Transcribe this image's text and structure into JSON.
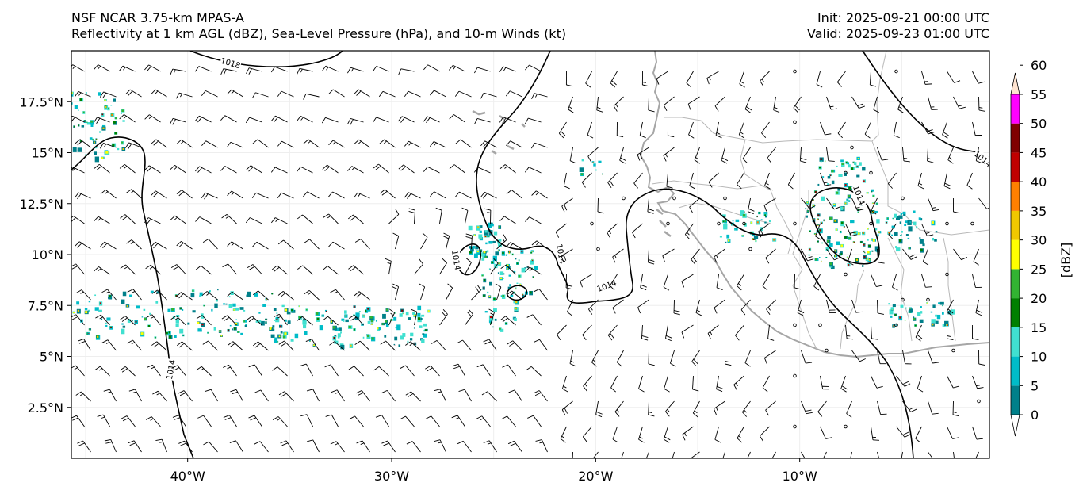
{
  "header": {
    "model": "NSF NCAR 3.75-km MPAS-A",
    "fields": "Reflectivity at 1 km AGL (dBZ), Sea-Level Pressure (hPa), and 10-m Winds (kt)",
    "init": "Init: 2025-09-21 00:00 UTC",
    "valid": "Valid: 2025-09-23 01:00 UTC"
  },
  "map": {
    "lon_range": [
      -45.7,
      -0.7
    ],
    "lat_range": [
      0,
      20
    ],
    "lon_ticks": [
      {
        "value": -40,
        "label": "40°W"
      },
      {
        "value": -30,
        "label": "30°W"
      },
      {
        "value": -20,
        "label": "20°W"
      },
      {
        "value": -10,
        "label": "10°W"
      }
    ],
    "lat_ticks": [
      {
        "value": 17.5,
        "label": "17.5°N"
      },
      {
        "value": 15,
        "label": "15°N"
      },
      {
        "value": 12.5,
        "label": "12.5°N"
      },
      {
        "value": 10,
        "label": "10°N"
      },
      {
        "value": 7.5,
        "label": "7.5°N"
      },
      {
        "value": 5,
        "label": "5°N"
      },
      {
        "value": 2.5,
        "label": "2.5°N"
      }
    ],
    "gridlines": true,
    "contour_labels": [
      "1018",
      "1014",
      "1014",
      "1014",
      "1014",
      "1014",
      "1014"
    ],
    "colors": {
      "coastline": "#a6a6a6",
      "borders": "#b8b8b8",
      "isobar": "#000000",
      "barb": "#000000"
    }
  },
  "colorbar": {
    "label": "[dBZ]",
    "ticks": [
      "0",
      "5",
      "10",
      "15",
      "20",
      "25",
      "30",
      "35",
      "40",
      "45",
      "50",
      "55",
      "60"
    ],
    "colors": [
      "#ffffff",
      "#00808a",
      "#00bcc8",
      "#40e0d0",
      "#008000",
      "#32b432",
      "#ffff00",
      "#f0c800",
      "#ff8000",
      "#c00000",
      "#800000",
      "#ff00ff",
      "#ffe4d0"
    ]
  }
}
